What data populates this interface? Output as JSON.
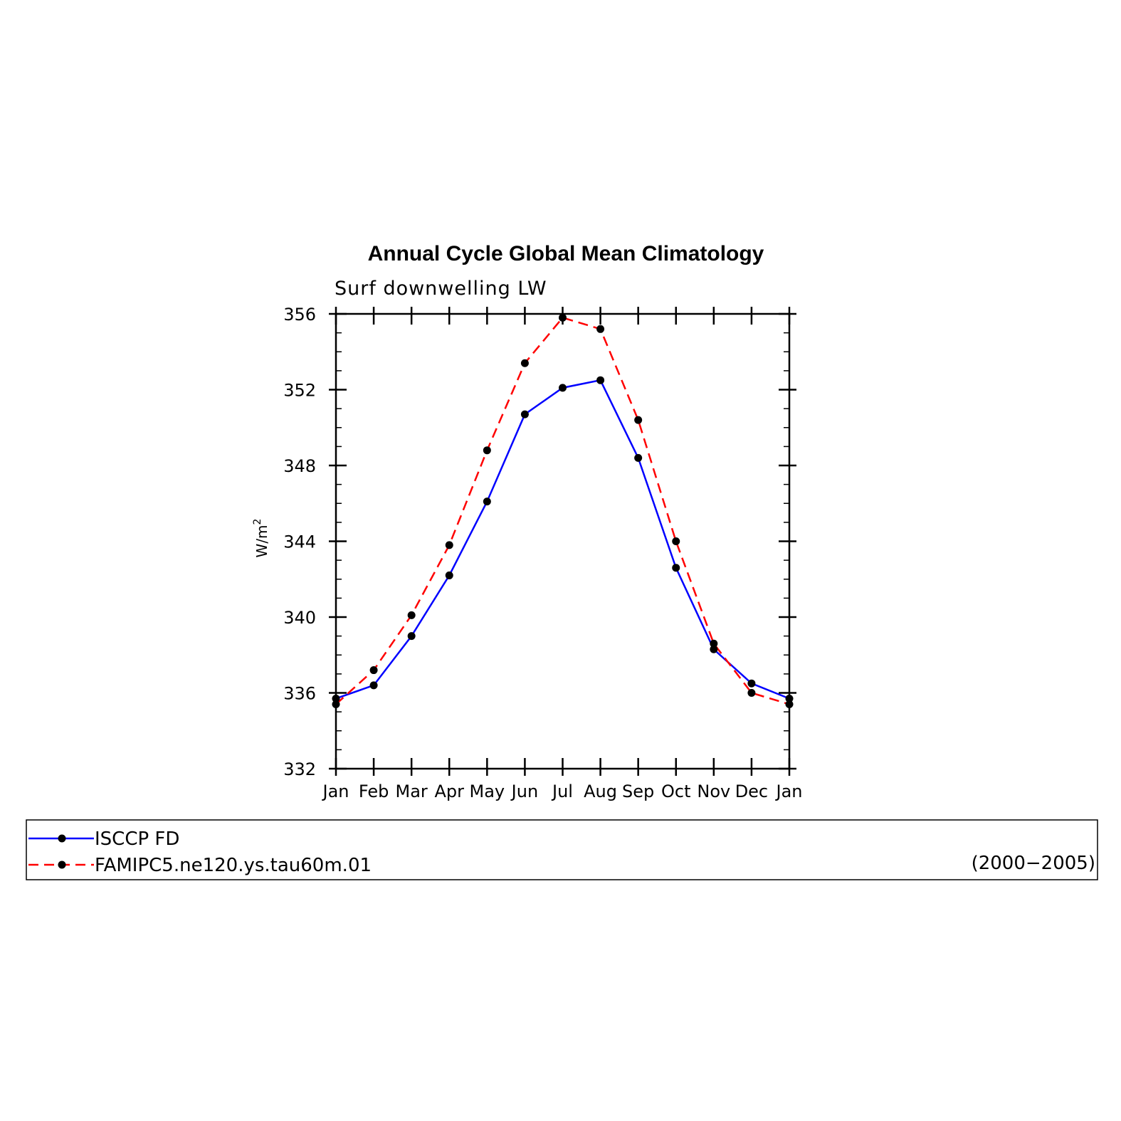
{
  "chart_data": {
    "type": "line",
    "title": "Annual Cycle Global Mean Climatology",
    "subtitle": "Surf downwelling LW",
    "ylabel": "W/m",
    "ylabel_sup": "2",
    "ylim": [
      332,
      356
    ],
    "yticks": [
      332,
      336,
      340,
      344,
      348,
      352,
      356
    ],
    "categories": [
      "Jan",
      "Feb",
      "Mar",
      "Apr",
      "May",
      "Jun",
      "Jul",
      "Aug",
      "Sep",
      "Oct",
      "Nov",
      "Dec",
      "Jan"
    ],
    "series": [
      {
        "name": "ISCCP FD",
        "color": "#0000ff",
        "dash": "solid",
        "values": [
          335.7,
          336.4,
          339.0,
          342.2,
          346.1,
          350.7,
          352.1,
          352.5,
          348.4,
          342.6,
          338.3,
          336.5,
          335.7
        ]
      },
      {
        "name": "FAMIPC5.ne120.ys.tau60m.01",
        "color": "#ff0000",
        "dash": "dashed",
        "values": [
          335.4,
          337.2,
          340.1,
          343.8,
          348.8,
          353.4,
          355.8,
          355.2,
          350.4,
          344.0,
          338.6,
          336.0,
          335.4
        ]
      }
    ],
    "legend": {
      "placement": "bottom",
      "period": "(2000−2005)"
    },
    "grid": false
  }
}
